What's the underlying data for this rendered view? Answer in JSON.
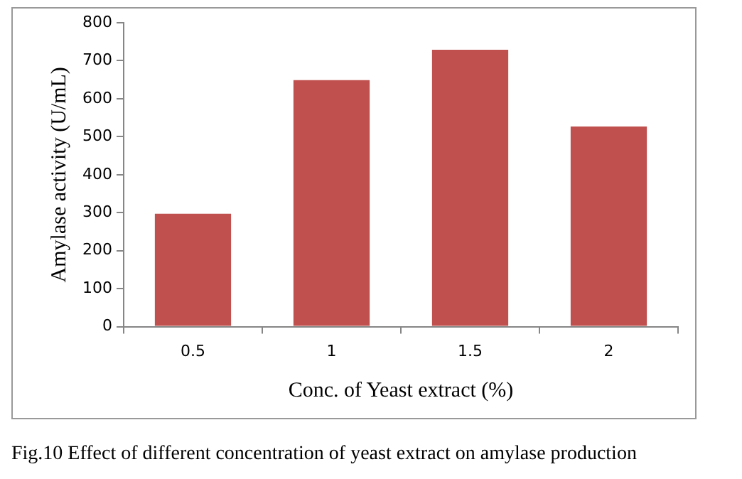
{
  "chart_data": {
    "type": "bar",
    "xlabel": "Conc. of Yeast extract (%)",
    "ylabel": "Amylase activity (U/mL)",
    "categories": [
      "0.5",
      "1",
      "1.5",
      "2"
    ],
    "values": [
      297,
      649,
      729,
      527
    ],
    "color": "#c0504d",
    "ylim": [
      0,
      800
    ],
    "yticks": [
      0,
      100,
      200,
      300,
      400,
      500,
      600,
      700,
      800
    ],
    "grid": false,
    "legend": false,
    "annotations": [
      "Fig.10 Effect of different concentration of yeast extract on amylase production"
    ]
  }
}
